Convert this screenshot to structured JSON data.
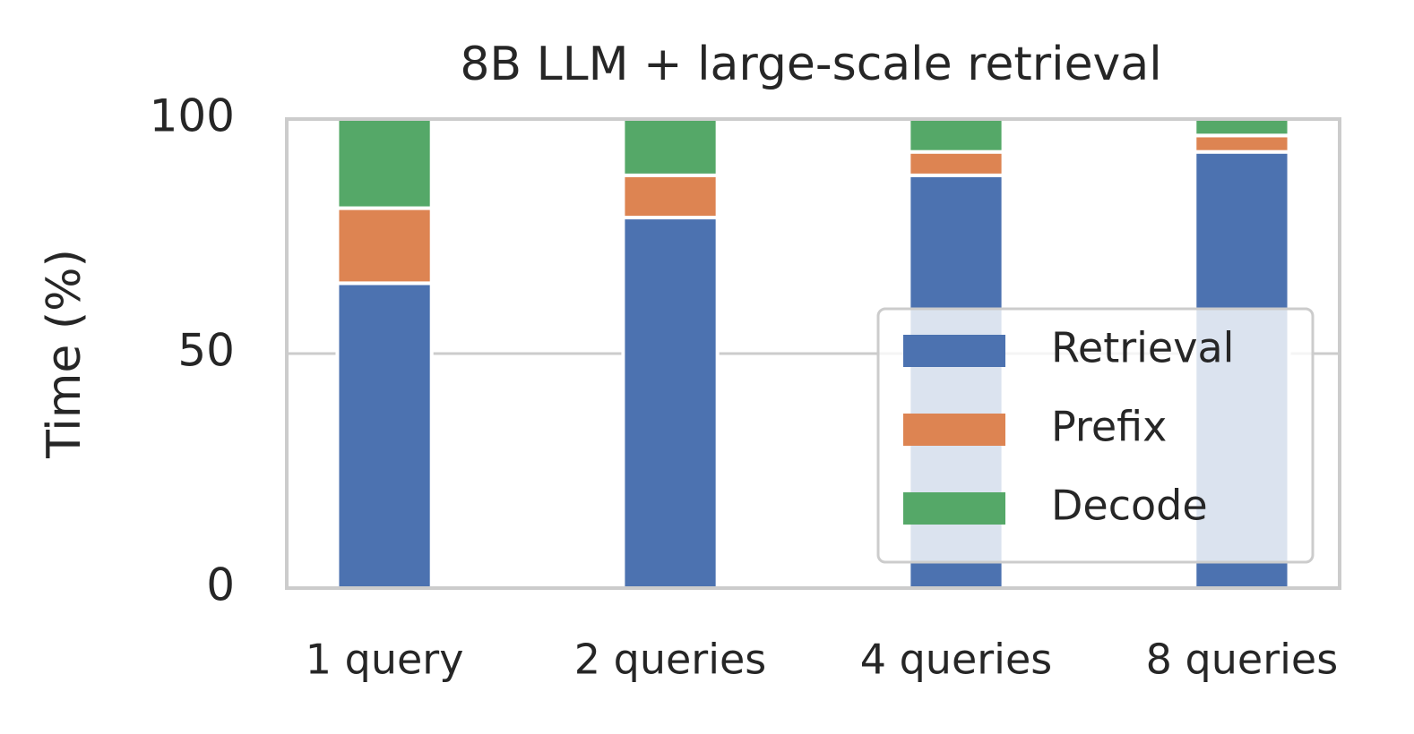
{
  "chart_data": {
    "type": "stacked_bar",
    "title": "8B LLM + large-scale retrieval",
    "y_label": "Time (%)",
    "categories": [
      "1 query",
      "2 queries",
      "4 queries",
      "8 queries"
    ],
    "series": [
      {
        "name": "Retrieval",
        "color": "#4c72b0",
        "values": [
          65,
          79,
          88,
          93
        ]
      },
      {
        "name": "Prefix",
        "color": "#dd8452",
        "values": [
          16,
          9,
          5,
          3.5
        ]
      },
      {
        "name": "Decode",
        "color": "#55a868",
        "values": [
          19,
          12,
          7,
          3.5
        ]
      }
    ],
    "ylim": [
      0,
      100
    ],
    "yticks": [
      0,
      50,
      100
    ],
    "grid": true,
    "legend": "lower right"
  }
}
